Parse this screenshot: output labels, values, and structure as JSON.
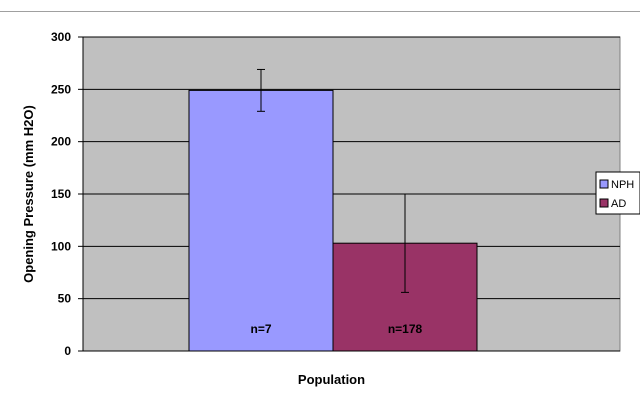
{
  "chart_data": {
    "type": "bar",
    "title": "",
    "xlabel": "Population",
    "ylabel": "Opening Pressure (mm H2O)",
    "ylim": [
      0,
      300
    ],
    "yticks": [
      0,
      50,
      100,
      150,
      200,
      250,
      300
    ],
    "grid": true,
    "legend_position": "right",
    "categories": [
      "NPH",
      "AD"
    ],
    "values": [
      249,
      103
    ],
    "error_low": [
      229,
      56
    ],
    "error_high": [
      269,
      150
    ],
    "bar_labels": [
      "n=7",
      "n=178"
    ],
    "colors": [
      "#9999ff",
      "#993366"
    ],
    "plot_background": "#c0c0c0",
    "legend": [
      {
        "label": "NPH",
        "color": "#9999ff"
      },
      {
        "label": "AD",
        "color": "#993366"
      }
    ]
  }
}
